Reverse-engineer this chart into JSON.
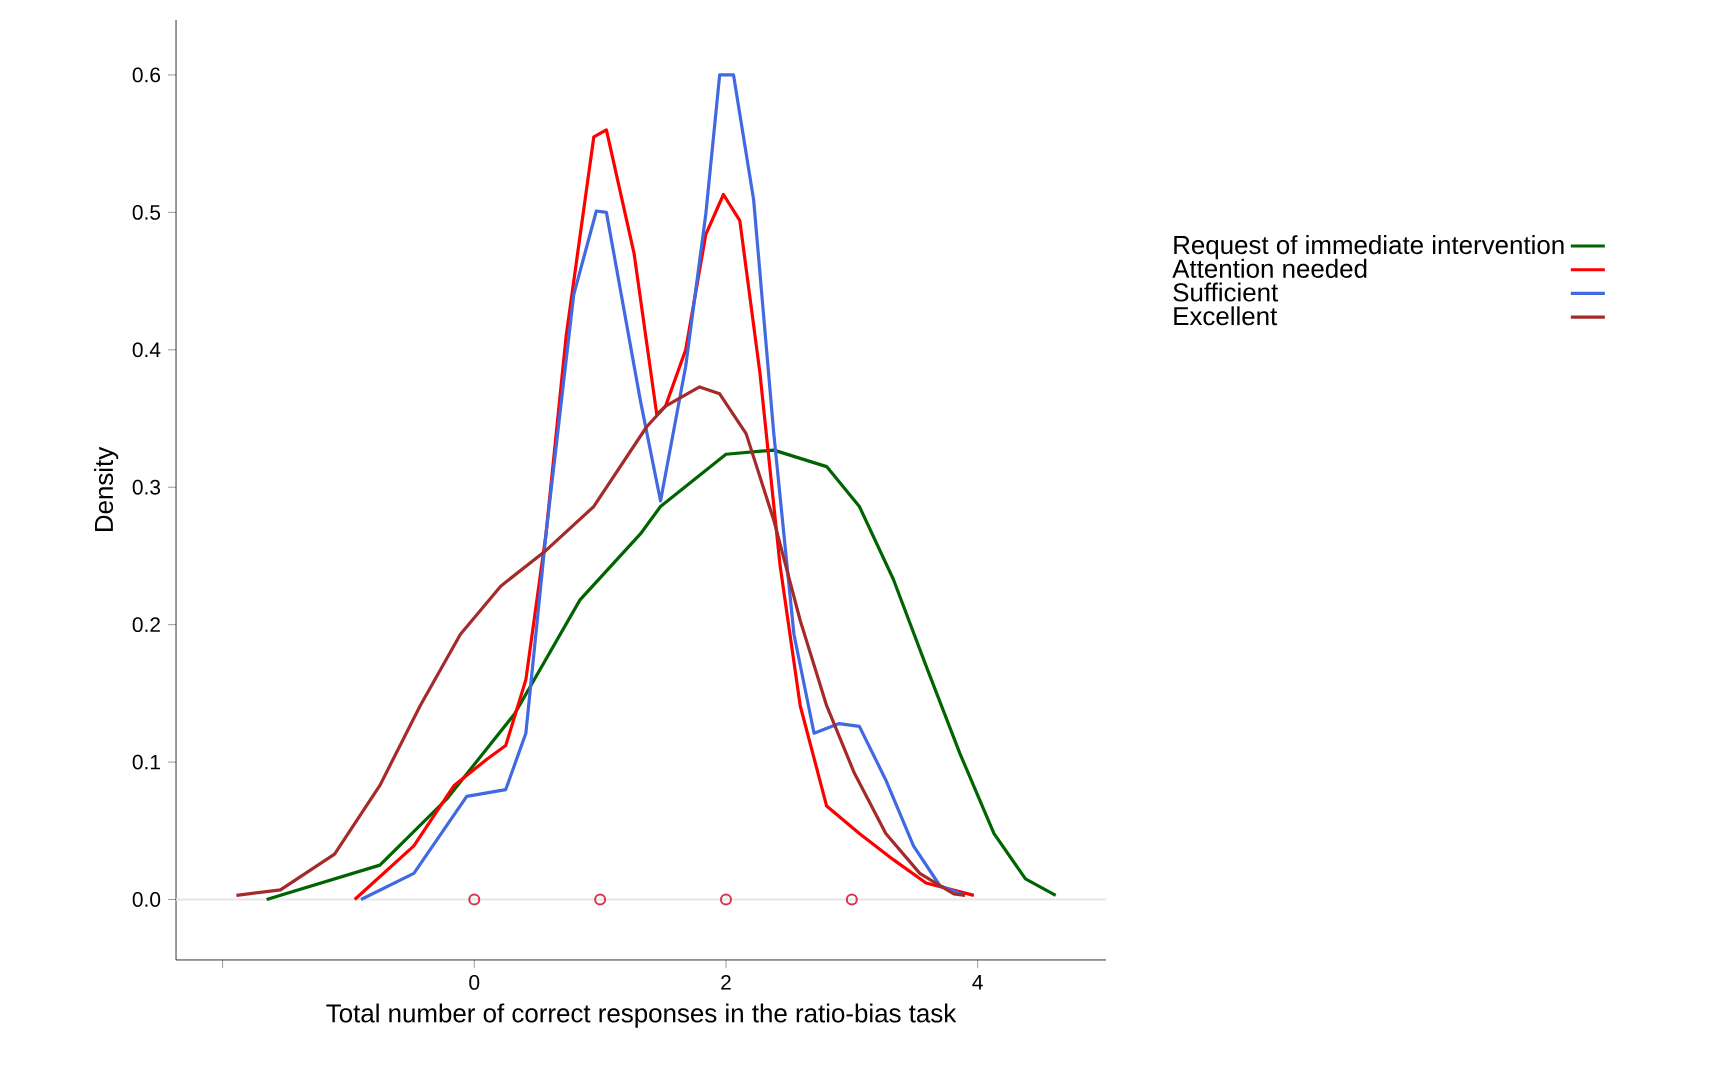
{
  "chart_data": {
    "type": "line",
    "xlabel": "Total number of correct responses in the ratio-bias task",
    "ylabel": "Density",
    "xlim": [
      -2.37,
      5.02
    ],
    "ylim": [
      -0.044,
      0.64
    ],
    "xticks": [
      {
        "value": -2,
        "label": null
      },
      0,
      2,
      4
    ],
    "yticks": [
      {
        "value": 0,
        "label": "0.0"
      },
      0.1,
      0.2,
      0.3,
      0.4,
      0.5,
      0.6
    ],
    "tick_labels": true,
    "legend": "right",
    "grid": false,
    "ref_lines": [
      {
        "axis": "y",
        "value": 0,
        "label": null,
        "color": "#e6e6e6"
      }
    ],
    "series": [
      {
        "name": "Request of immediate intervention",
        "color": "#006400",
        "x": [
          -1.65,
          -0.75,
          -0.22,
          0.32,
          0.84,
          1.32,
          1.48,
          2,
          2.38,
          2.8,
          3.06,
          3.33,
          3.59,
          3.86,
          4.13,
          4.38,
          4.62
        ],
        "values": [
          0,
          0.025,
          0.073,
          0.135,
          0.218,
          0.266,
          0.286,
          0.324,
          0.327,
          0.315,
          0.286,
          0.233,
          0.17,
          0.106,
          0.048,
          0.015,
          0.003
        ]
      },
      {
        "name": "Attention needed",
        "color": "#ff0000",
        "x": [
          -0.95,
          -0.48,
          -0.16,
          0.1,
          0.25,
          0.41,
          0.57,
          0.73,
          0.95,
          1.05,
          1.27,
          1.45,
          1.52,
          1.68,
          1.84,
          1.98,
          2.11,
          2.27,
          2.43,
          2.59,
          2.8,
          3.06,
          3.33,
          3.59,
          3.97
        ],
        "values": [
          0,
          0.039,
          0.083,
          0.102,
          0.112,
          0.16,
          0.266,
          0.41,
          0.555,
          0.56,
          0.47,
          0.353,
          0.359,
          0.4,
          0.484,
          0.513,
          0.494,
          0.383,
          0.243,
          0.141,
          0.068,
          0.048,
          0.029,
          0.012,
          0.003
        ]
      },
      {
        "name": "Sufficient",
        "color": "#4169e1",
        "x": [
          -0.9,
          -0.48,
          -0.06,
          0.25,
          0.41,
          0.57,
          0.79,
          0.97,
          1.05,
          1.32,
          1.48,
          1.68,
          1.84,
          1.95,
          2.06,
          2.22,
          2.38,
          2.54,
          2.7,
          2.9,
          3.06,
          3.27,
          3.49,
          3.7,
          3.9
        ],
        "values": [
          0,
          0.019,
          0.075,
          0.08,
          0.121,
          0.266,
          0.44,
          0.501,
          0.5,
          0.363,
          0.29,
          0.388,
          0.499,
          0.6,
          0.6,
          0.509,
          0.339,
          0.193,
          0.121,
          0.128,
          0.126,
          0.087,
          0.039,
          0.01,
          0.003
        ]
      },
      {
        "name": "Excellent",
        "color": "#a52a2a",
        "x": [
          -1.89,
          -1.54,
          -1.11,
          -0.75,
          -0.43,
          -0.11,
          0.21,
          0.57,
          0.95,
          1.37,
          1.52,
          1.79,
          1.95,
          2.16,
          2.38,
          2.59,
          2.8,
          3.02,
          3.27,
          3.54,
          3.81,
          3.9
        ],
        "values": [
          0.003,
          0.007,
          0.033,
          0.083,
          0.141,
          0.193,
          0.228,
          0.254,
          0.286,
          0.344,
          0.359,
          0.373,
          0.368,
          0.339,
          0.276,
          0.203,
          0.141,
          0.092,
          0.048,
          0.019,
          0.004,
          0.003
        ]
      },
      {
        "type": "scatter",
        "marker": "circle",
        "color": "#e0304a",
        "x": [
          0,
          1,
          2,
          3
        ],
        "values": [
          0,
          0,
          0,
          0
        ]
      }
    ]
  }
}
